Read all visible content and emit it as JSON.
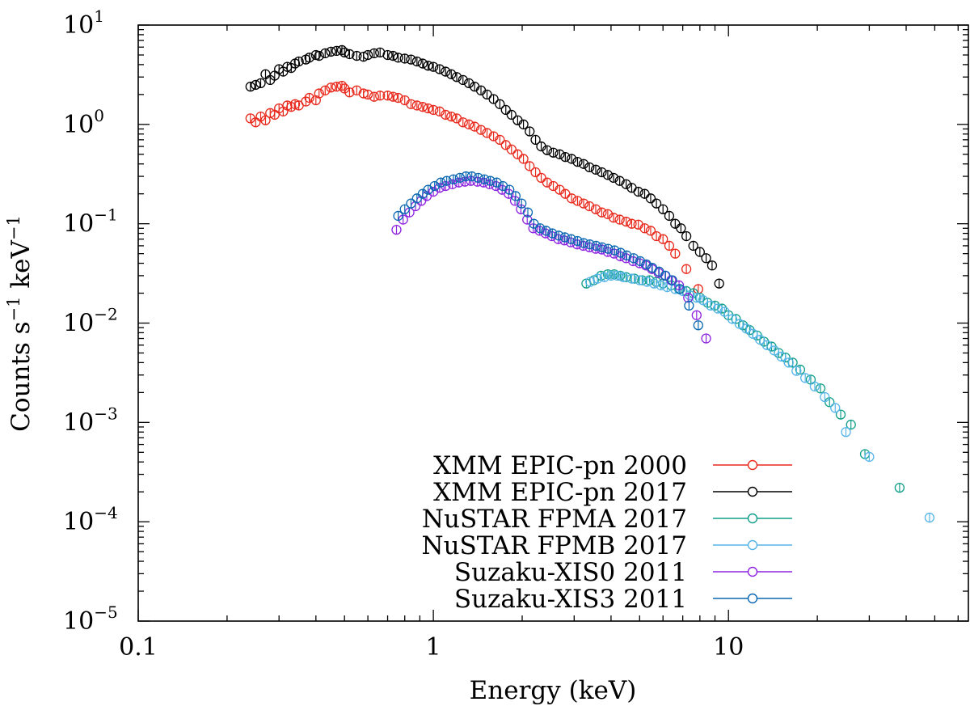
{
  "chart_data": {
    "type": "scatter",
    "title": "",
    "xlabel": "Energy (keV)",
    "ylabel_parts": [
      "Counts s",
      "−1",
      " keV",
      "−1"
    ],
    "xscale": "log",
    "yscale": "log",
    "xlim": [
      0.1,
      65
    ],
    "ylim": [
      1e-05,
      10
    ],
    "x_ticks": [
      {
        "value": 0.1,
        "label": "0.1"
      },
      {
        "value": 1,
        "label": "1"
      },
      {
        "value": 10,
        "label": "10"
      }
    ],
    "y_ticks": [
      {
        "value": 10,
        "base": "10",
        "exp": "1"
      },
      {
        "value": 1,
        "base": "10",
        "exp": "0"
      },
      {
        "value": 0.1,
        "base": "10",
        "exp": "−1"
      },
      {
        "value": 0.01,
        "base": "10",
        "exp": "−2"
      },
      {
        "value": 0.001,
        "base": "10",
        "exp": "−3"
      },
      {
        "value": 0.0001,
        "base": "10",
        "exp": "−4"
      },
      {
        "value": 1e-05,
        "base": "10",
        "exp": "−5"
      }
    ],
    "legend_position": "bottom-right",
    "series": [
      {
        "name": "XMM EPIC-pn 2000",
        "color": "#e8291c",
        "x": [
          0.24,
          0.25,
          0.26,
          0.27,
          0.28,
          0.29,
          0.3,
          0.31,
          0.32,
          0.33,
          0.34,
          0.35,
          0.37,
          0.38,
          0.4,
          0.41,
          0.43,
          0.45,
          0.47,
          0.49,
          0.5,
          0.52,
          0.55,
          0.58,
          0.6,
          0.63,
          0.66,
          0.7,
          0.73,
          0.76,
          0.8,
          0.84,
          0.88,
          0.92,
          0.96,
          1.0,
          1.05,
          1.1,
          1.15,
          1.2,
          1.26,
          1.32,
          1.38,
          1.45,
          1.52,
          1.6,
          1.68,
          1.76,
          1.84,
          1.93,
          2.02,
          2.12,
          2.22,
          2.32,
          2.43,
          2.55,
          2.68,
          2.8,
          2.94,
          3.08,
          3.23,
          3.38,
          3.55,
          3.72,
          3.9,
          4.08,
          4.28,
          4.5,
          4.7,
          4.95,
          5.2,
          5.45,
          5.7,
          6.0,
          6.3,
          6.6,
          7.2,
          7.9
        ],
        "y": [
          1.15,
          1.05,
          1.2,
          1.1,
          1.3,
          1.25,
          1.45,
          1.35,
          1.55,
          1.5,
          1.6,
          1.55,
          1.7,
          1.85,
          1.75,
          2.05,
          2.2,
          2.35,
          2.4,
          2.45,
          2.3,
          2.1,
          2.2,
          2.05,
          2.0,
          1.9,
          1.95,
          1.95,
          1.9,
          1.85,
          1.75,
          1.6,
          1.55,
          1.5,
          1.45,
          1.4,
          1.35,
          1.25,
          1.2,
          1.15,
          1.05,
          1.0,
          0.95,
          0.88,
          0.82,
          0.76,
          0.7,
          0.62,
          0.56,
          0.5,
          0.45,
          0.38,
          0.33,
          0.29,
          0.26,
          0.24,
          0.22,
          0.2,
          0.18,
          0.17,
          0.16,
          0.15,
          0.14,
          0.13,
          0.125,
          0.115,
          0.11,
          0.105,
          0.1,
          0.098,
          0.09,
          0.085,
          0.075,
          0.07,
          0.06,
          0.05,
          0.035,
          0.022
        ]
      },
      {
        "name": "XMM EPIC-pn 2017",
        "color": "#000000",
        "x": [
          0.24,
          0.25,
          0.26,
          0.27,
          0.28,
          0.29,
          0.3,
          0.31,
          0.32,
          0.33,
          0.34,
          0.35,
          0.37,
          0.38,
          0.4,
          0.41,
          0.43,
          0.45,
          0.47,
          0.49,
          0.5,
          0.52,
          0.55,
          0.58,
          0.6,
          0.63,
          0.66,
          0.7,
          0.73,
          0.76,
          0.8,
          0.84,
          0.88,
          0.92,
          0.96,
          1.0,
          1.05,
          1.1,
          1.15,
          1.2,
          1.26,
          1.32,
          1.38,
          1.45,
          1.52,
          1.6,
          1.68,
          1.76,
          1.84,
          1.93,
          2.02,
          2.12,
          2.22,
          2.32,
          2.43,
          2.55,
          2.68,
          2.8,
          2.94,
          3.08,
          3.23,
          3.38,
          3.55,
          3.72,
          3.9,
          4.08,
          4.28,
          4.5,
          4.7,
          4.95,
          5.2,
          5.45,
          5.7,
          6.0,
          6.3,
          6.6,
          6.9,
          7.2,
          7.6,
          8.0,
          8.4,
          8.8,
          9.3
        ],
        "y": [
          2.4,
          2.5,
          2.6,
          3.2,
          2.8,
          3.1,
          3.6,
          3.4,
          3.8,
          3.7,
          4.1,
          4.3,
          4.5,
          4.7,
          5.0,
          4.9,
          5.2,
          5.4,
          5.5,
          5.6,
          5.3,
          5.1,
          4.9,
          4.8,
          5.0,
          5.2,
          5.3,
          5.0,
          4.9,
          4.7,
          4.6,
          4.5,
          4.3,
          4.1,
          3.9,
          3.8,
          3.6,
          3.4,
          3.2,
          3.0,
          2.8,
          2.6,
          2.4,
          2.2,
          2.0,
          1.8,
          1.6,
          1.4,
          1.25,
          1.1,
          1.0,
          0.85,
          0.7,
          0.6,
          0.55,
          0.52,
          0.5,
          0.47,
          0.45,
          0.42,
          0.4,
          0.37,
          0.35,
          0.33,
          0.31,
          0.29,
          0.27,
          0.25,
          0.23,
          0.21,
          0.2,
          0.18,
          0.16,
          0.14,
          0.12,
          0.1,
          0.09,
          0.075,
          0.06,
          0.052,
          0.045,
          0.038,
          0.025
        ]
      },
      {
        "name": "NuSTAR FPMA 2017",
        "color": "#119f8a",
        "x": [
          3.3,
          3.5,
          3.7,
          3.9,
          4.1,
          4.3,
          4.5,
          4.8,
          5.1,
          5.4,
          5.7,
          6.0,
          6.4,
          6.8,
          7.2,
          7.6,
          8.0,
          8.5,
          9.0,
          9.5,
          10.0,
          10.6,
          11.2,
          11.8,
          12.5,
          13.2,
          14.0,
          14.8,
          15.6,
          16.5,
          17.5,
          19.0,
          20.5,
          22.0,
          24.0,
          26.0,
          29.0,
          38.0
        ],
        "y": [
          0.025,
          0.027,
          0.03,
          0.031,
          0.031,
          0.03,
          0.029,
          0.028,
          0.027,
          0.027,
          0.026,
          0.025,
          0.024,
          0.022,
          0.021,
          0.02,
          0.018,
          0.016,
          0.015,
          0.014,
          0.012,
          0.011,
          0.0095,
          0.0085,
          0.0075,
          0.0065,
          0.0058,
          0.005,
          0.0045,
          0.004,
          0.0034,
          0.0027,
          0.0022,
          0.0016,
          0.0012,
          0.00095,
          0.00048,
          0.00022
        ]
      },
      {
        "name": "NuSTAR FPMB 2017",
        "color": "#56b4e9",
        "x": [
          3.4,
          3.6,
          3.8,
          4.0,
          4.2,
          4.4,
          4.7,
          5.0,
          5.3,
          5.6,
          5.9,
          6.2,
          6.6,
          7.0,
          7.4,
          7.8,
          8.2,
          8.7,
          9.2,
          9.7,
          10.3,
          10.9,
          11.5,
          12.1,
          12.8,
          13.5,
          14.3,
          15.1,
          16.0,
          17.0,
          18.2,
          19.6,
          21.2,
          23.0,
          25.0,
          30.0,
          48.0
        ],
        "y": [
          0.026,
          0.028,
          0.029,
          0.03,
          0.03,
          0.029,
          0.028,
          0.027,
          0.026,
          0.025,
          0.024,
          0.023,
          0.022,
          0.021,
          0.019,
          0.018,
          0.017,
          0.015,
          0.014,
          0.013,
          0.011,
          0.0098,
          0.0088,
          0.0078,
          0.0068,
          0.006,
          0.0053,
          0.0046,
          0.004,
          0.0033,
          0.0028,
          0.0023,
          0.0018,
          0.0014,
          0.0008,
          0.00045,
          0.00011
        ]
      },
      {
        "name": "Suzaku-XIS0 2011",
        "color": "#8e24e0",
        "x": [
          0.75,
          0.79,
          0.83,
          0.87,
          0.91,
          0.95,
          1.0,
          1.05,
          1.1,
          1.16,
          1.22,
          1.28,
          1.34,
          1.41,
          1.48,
          1.55,
          1.63,
          1.71,
          1.8,
          1.89,
          1.98,
          2.08,
          2.18,
          2.29,
          2.4,
          2.52,
          2.65,
          2.78,
          2.92,
          3.07,
          3.22,
          3.38,
          3.55,
          3.72,
          3.9,
          4.1,
          4.3,
          4.5,
          4.75,
          5.0,
          5.25,
          5.5,
          5.8,
          6.1,
          6.4,
          6.8,
          7.3,
          7.8,
          8.4
        ],
        "y": [
          0.087,
          0.11,
          0.13,
          0.15,
          0.17,
          0.19,
          0.21,
          0.23,
          0.24,
          0.25,
          0.26,
          0.265,
          0.27,
          0.265,
          0.26,
          0.25,
          0.24,
          0.22,
          0.2,
          0.17,
          0.14,
          0.11,
          0.09,
          0.085,
          0.08,
          0.075,
          0.07,
          0.068,
          0.065,
          0.062,
          0.06,
          0.058,
          0.056,
          0.055,
          0.052,
          0.05,
          0.047,
          0.045,
          0.042,
          0.04,
          0.038,
          0.035,
          0.032,
          0.03,
          0.027,
          0.024,
          0.018,
          0.012,
          0.007
        ]
      },
      {
        "name": "Suzaku-XIS3 2011",
        "color": "#0b68b2",
        "x": [
          0.76,
          0.8,
          0.84,
          0.88,
          0.92,
          0.96,
          1.01,
          1.06,
          1.11,
          1.17,
          1.23,
          1.29,
          1.35,
          1.42,
          1.49,
          1.56,
          1.64,
          1.72,
          1.81,
          1.9,
          1.99,
          2.09,
          2.19,
          2.3,
          2.41,
          2.53,
          2.66,
          2.79,
          2.93,
          3.08,
          3.23,
          3.39,
          3.56,
          3.73,
          3.91,
          4.11,
          4.31,
          4.52,
          4.77,
          5.02,
          5.27,
          5.52,
          5.82,
          6.12,
          6.45,
          6.85,
          7.35,
          7.9
        ],
        "y": [
          0.12,
          0.14,
          0.16,
          0.18,
          0.2,
          0.22,
          0.24,
          0.26,
          0.27,
          0.28,
          0.29,
          0.3,
          0.3,
          0.29,
          0.28,
          0.27,
          0.26,
          0.24,
          0.22,
          0.19,
          0.16,
          0.13,
          0.1,
          0.09,
          0.085,
          0.08,
          0.076,
          0.073,
          0.07,
          0.067,
          0.064,
          0.062,
          0.06,
          0.058,
          0.056,
          0.054,
          0.051,
          0.048,
          0.045,
          0.042,
          0.039,
          0.036,
          0.033,
          0.03,
          0.027,
          0.022,
          0.015,
          0.0095
        ]
      }
    ]
  }
}
